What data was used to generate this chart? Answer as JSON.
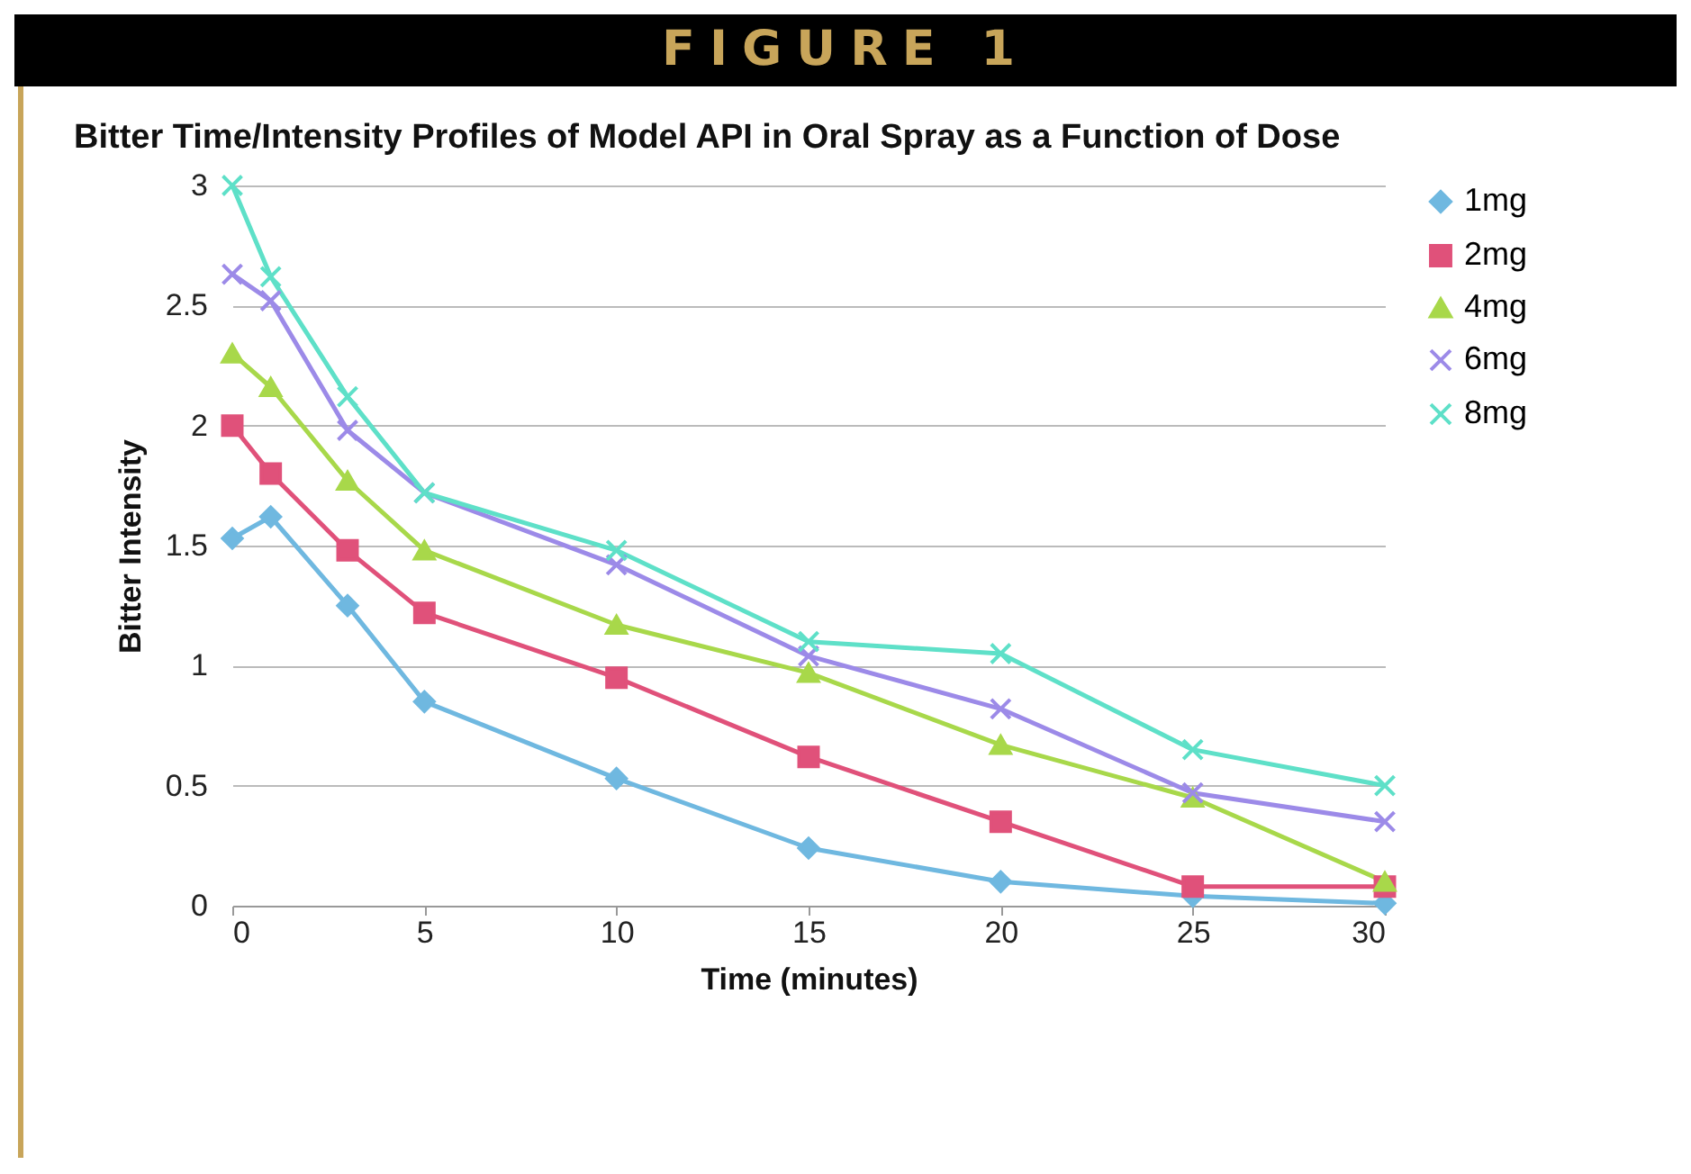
{
  "chart_data": {
    "type": "line",
    "title": "FIGURE 1",
    "subtitle": "Bitter Time/Intensity Profiles of Model API in Oral Spray as a Function of Dose",
    "xlabel": "Time (minutes)",
    "ylabel": "Bitter Intensity",
    "x": [
      0,
      1,
      3,
      5,
      10,
      15,
      20,
      25,
      30
    ],
    "series": [
      {
        "name": "1mg",
        "color": "#6fb8e0",
        "marker": "diamond",
        "values": [
          1.53,
          1.62,
          1.25,
          0.85,
          0.53,
          0.24,
          0.1,
          0.04,
          0.01
        ]
      },
      {
        "name": "2mg",
        "color": "#e0517a",
        "marker": "square",
        "values": [
          2.0,
          1.8,
          1.48,
          1.22,
          0.95,
          0.62,
          0.35,
          0.08,
          0.08
        ]
      },
      {
        "name": "4mg",
        "color": "#a8d84a",
        "marker": "triangle",
        "values": [
          2.3,
          2.16,
          1.77,
          1.48,
          1.17,
          0.97,
          0.67,
          0.45,
          0.1
        ]
      },
      {
        "name": "6mg",
        "color": "#9c8ae8",
        "marker": "cross",
        "values": [
          2.63,
          2.52,
          1.98,
          1.72,
          1.42,
          1.04,
          0.82,
          0.47,
          0.35
        ]
      },
      {
        "name": "8mg",
        "color": "#5ee0c8",
        "marker": "cross",
        "values": [
          3.0,
          2.62,
          2.12,
          1.72,
          1.48,
          1.1,
          1.05,
          0.65,
          0.5
        ]
      }
    ],
    "xlim": [
      0,
      30
    ],
    "xticks": [
      0,
      5,
      10,
      15,
      20,
      25,
      30
    ],
    "ylim": [
      0,
      3
    ],
    "yticks": [
      0,
      0.5,
      1,
      1.5,
      2,
      2.5,
      3
    ],
    "grid": "y",
    "legend": "right"
  }
}
